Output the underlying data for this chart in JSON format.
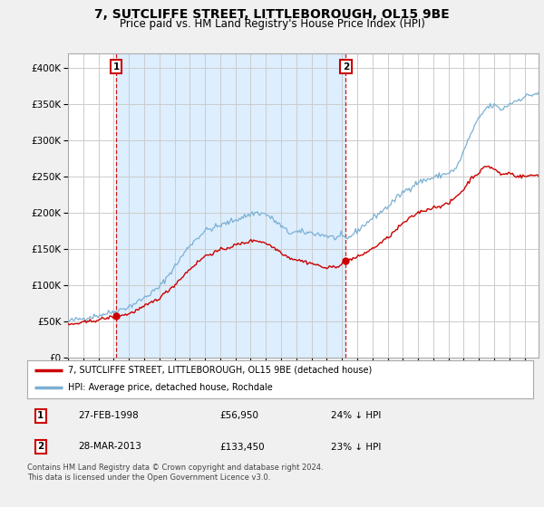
{
  "title": "7, SUTCLIFFE STREET, LITTLEBOROUGH, OL15 9BE",
  "subtitle": "Price paid vs. HM Land Registry's House Price Index (HPI)",
  "legend_line1": "7, SUTCLIFFE STREET, LITTLEBOROUGH, OL15 9BE (detached house)",
  "legend_line2": "HPI: Average price, detached house, Rochdale",
  "sale1_date": "27-FEB-1998",
  "sale1_price": 56950,
  "sale1_hpi": "24% ↓ HPI",
  "sale2_date": "28-MAR-2013",
  "sale2_price": 133450,
  "sale2_hpi": "23% ↓ HPI",
  "footer": "Contains HM Land Registry data © Crown copyright and database right 2024.\nThis data is licensed under the Open Government Licence v3.0.",
  "price_line_color": "#cc0000",
  "hpi_line_color": "#7ab0d4",
  "shade_color": "#ddeeff",
  "background_color": "#f0f0f0",
  "plot_bg_color": "#ffffff",
  "grid_color": "#cccccc",
  "ylim": [
    0,
    420000
  ],
  "yticks": [
    0,
    50000,
    100000,
    150000,
    200000,
    250000,
    300000,
    350000,
    400000
  ],
  "x_start_year": 1995,
  "x_end_year": 2025
}
